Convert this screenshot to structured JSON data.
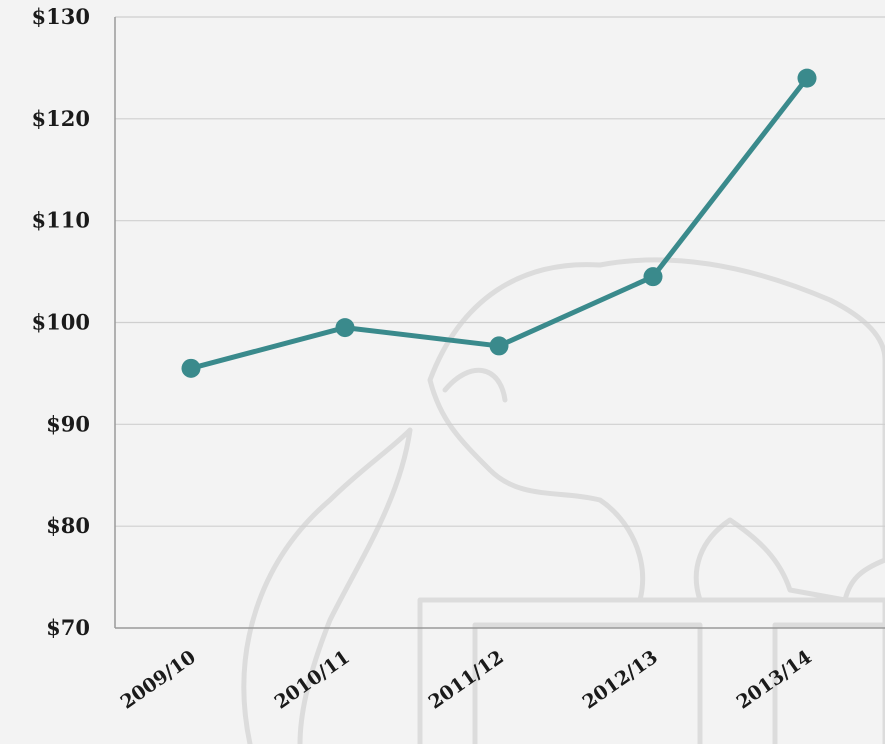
{
  "chart_data": {
    "type": "line",
    "categories": [
      "2009/10",
      "2010/11",
      "2011/12",
      "2012/13",
      "2013/14"
    ],
    "series": [
      {
        "values": [
          95.5,
          99.5,
          97.7,
          104.5,
          124.0
        ]
      }
    ],
    "ylim": [
      70,
      130
    ],
    "yticks": [
      70,
      80,
      90,
      100,
      110,
      120,
      130
    ],
    "ytick_labels": [
      "$70",
      "$80",
      "$90",
      "$100",
      "$110",
      "$120",
      "$130"
    ],
    "grid": true,
    "title": "",
    "xlabel": "",
    "ylabel": "",
    "colors": {
      "line": "#3a8a8c",
      "grid": "#cfcfcf",
      "axis": "#9a9a9a",
      "background": "#f3f3f3",
      "watermark": "#dcdcdc"
    }
  }
}
